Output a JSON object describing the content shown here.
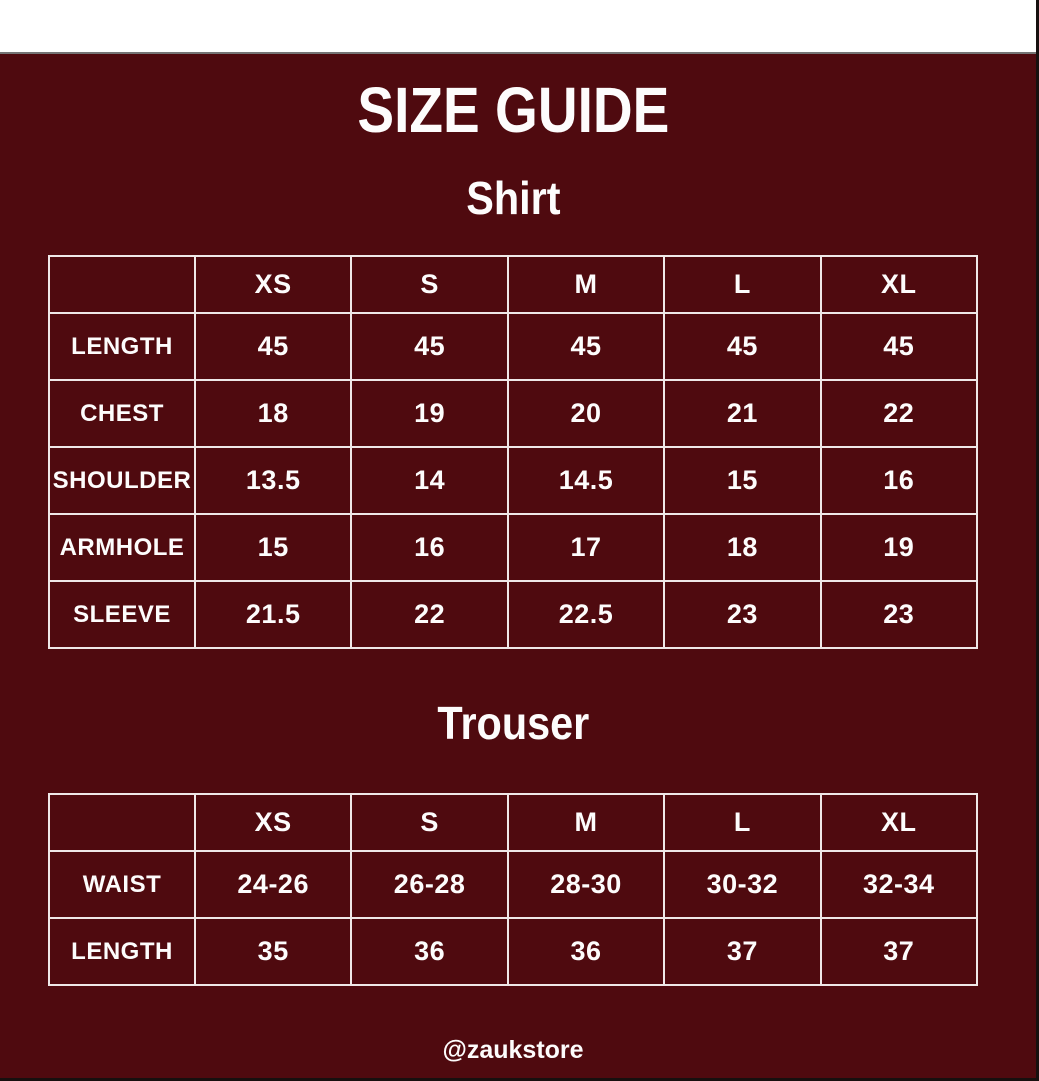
{
  "page": {
    "title": "SIZE GUIDE",
    "handle": "@zaukstore",
    "colors": {
      "background": "#4f0a0f",
      "text": "#fdfcfc",
      "table_border": "#efe8e8",
      "top_strip": "#ffffff",
      "top_strip_divider": "#757575",
      "window_edge": "#17100f"
    }
  },
  "tables": [
    {
      "name": "Shirt",
      "columns": [
        "",
        "XS",
        "S",
        "M",
        "L",
        "XL"
      ],
      "rows": [
        {
          "label": "LENGTH",
          "values": [
            "45",
            "45",
            "45",
            "45",
            "45"
          ]
        },
        {
          "label": "CHEST",
          "values": [
            "18",
            "19",
            "20",
            "21",
            "22"
          ]
        },
        {
          "label": "SHOULDER",
          "values": [
            "13.5",
            "14",
            "14.5",
            "15",
            "16"
          ]
        },
        {
          "label": "ARMHOLE",
          "values": [
            "15",
            "16",
            "17",
            "18",
            "19"
          ]
        },
        {
          "label": "SLEEVE",
          "values": [
            "21.5",
            "22",
            "22.5",
            "23",
            "23"
          ]
        }
      ]
    },
    {
      "name": "Trouser",
      "columns": [
        "",
        "XS",
        "S",
        "M",
        "L",
        "XL"
      ],
      "rows": [
        {
          "label": "WAIST",
          "values": [
            "24-26",
            "26-28",
            "28-30",
            "30-32",
            "32-34"
          ]
        },
        {
          "label": "LENGTH",
          "values": [
            "35",
            "36",
            "36",
            "37",
            "37"
          ]
        }
      ]
    }
  ]
}
